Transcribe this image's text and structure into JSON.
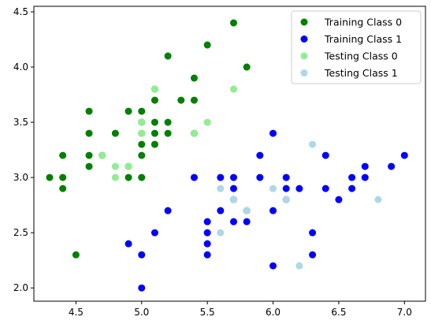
{
  "chart_data": {
    "type": "scatter",
    "xlim": [
      4.18,
      7.16
    ],
    "ylim": [
      1.88,
      4.55
    ],
    "xticks": [
      4.5,
      {
        "value": 5.0,
        "label": "5.0"
      },
      5.5,
      {
        "value": 6.0,
        "label": "6.0"
      },
      6.5,
      {
        "value": 7.0,
        "label": "7.0"
      }
    ],
    "yticks": [
      {
        "value": 2.0,
        "label": "2.0"
      },
      2.5,
      {
        "value": 3.0,
        "label": "3.0"
      },
      3.5,
      {
        "value": 4.0,
        "label": "4.0"
      },
      4.5
    ],
    "legend": "upper right",
    "series": [
      {
        "name": "Training Class 0",
        "color": "#008000",
        "x": [
          4.3,
          4.4,
          4.4,
          4.4,
          4.5,
          4.6,
          4.6,
          4.6,
          4.6,
          4.7,
          4.8,
          4.9,
          4.9,
          4.9,
          5.0,
          5.0,
          5.0,
          5.0,
          5.0,
          5.0,
          5.1,
          5.1,
          5.1,
          5.1,
          5.1,
          5.2,
          5.2,
          5.2,
          5.3,
          5.4,
          5.4,
          5.4,
          5.5,
          5.7,
          5.8
        ],
        "y": [
          3.0,
          3.2,
          3.0,
          2.9,
          2.3,
          3.6,
          3.4,
          3.2,
          3.1,
          3.2,
          3.4,
          3.6,
          3.0,
          3.1,
          3.6,
          3.5,
          3.4,
          3.3,
          3.2,
          3.0,
          3.8,
          3.7,
          3.5,
          3.4,
          3.3,
          4.1,
          3.5,
          3.4,
          3.7,
          3.9,
          3.7,
          3.4,
          4.2,
          4.4,
          4.0
        ]
      },
      {
        "name": "Training Class 1",
        "color": "#0000ff",
        "x": [
          4.9,
          5.0,
          5.0,
          5.1,
          5.2,
          5.4,
          5.5,
          5.5,
          5.5,
          5.5,
          5.6,
          5.6,
          5.7,
          5.7,
          5.7,
          5.7,
          5.8,
          5.8,
          5.9,
          5.9,
          6.0,
          6.0,
          6.0,
          6.1,
          6.1,
          6.1,
          6.2,
          6.3,
          6.3,
          6.4,
          6.4,
          6.5,
          6.6,
          6.6,
          6.7,
          6.7,
          6.9,
          7.0
        ],
        "y": [
          2.4,
          2.3,
          2.0,
          2.5,
          2.7,
          3.0,
          2.6,
          2.5,
          2.4,
          2.3,
          3.0,
          2.7,
          3.0,
          2.9,
          2.8,
          2.6,
          2.7,
          2.6,
          3.2,
          3.0,
          3.4,
          2.7,
          2.2,
          3.0,
          2.9,
          2.8,
          2.9,
          2.5,
          2.3,
          3.2,
          2.9,
          2.8,
          3.0,
          2.9,
          3.1,
          3.0,
          3.1,
          3.2
        ]
      },
      {
        "name": "Testing Class 0",
        "color": "#90ee90",
        "x": [
          4.7,
          4.8,
          4.8,
          4.9,
          5.0,
          5.0,
          5.1,
          5.4,
          5.5,
          5.7
        ],
        "y": [
          3.2,
          3.1,
          3.0,
          3.1,
          3.4,
          3.5,
          3.8,
          3.4,
          3.5,
          3.8
        ]
      },
      {
        "name": "Testing Class 1",
        "color": "#add8e6",
        "x": [
          5.6,
          5.6,
          5.7,
          5.8,
          6.0,
          6.1,
          6.2,
          6.3,
          6.8
        ],
        "y": [
          2.9,
          2.5,
          2.8,
          2.7,
          2.9,
          2.8,
          2.2,
          3.3,
          2.8
        ]
      }
    ]
  }
}
